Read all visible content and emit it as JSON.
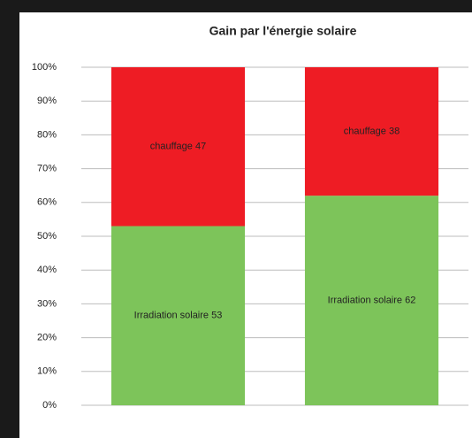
{
  "chart_data": {
    "type": "stacked_bar",
    "title": "Gain par l'énergie solaire",
    "categories": [
      null,
      null
    ],
    "series": [
      {
        "color": "#7dc45a",
        "values": [
          53,
          62
        ],
        "value_labels": [
          "Irradiation solaire 53",
          "Irradiation solaire 62"
        ]
      },
      {
        "color": "#ee1c24",
        "values": [
          47,
          38
        ],
        "value_labels": [
          "chauffage 47",
          "chauffage 38"
        ]
      }
    ],
    "ylim": [
      0,
      100
    ],
    "yticks": [
      {
        "value": 0,
        "label": "0%"
      },
      {
        "value": 10,
        "label": "10%"
      },
      {
        "value": 20,
        "label": "20%"
      },
      {
        "value": 30,
        "label": "30%"
      },
      {
        "value": 40,
        "label": "40%"
      },
      {
        "value": 50,
        "label": "50%"
      },
      {
        "value": 60,
        "label": "60%"
      },
      {
        "value": 70,
        "label": "70%"
      },
      {
        "value": 80,
        "label": "80%"
      },
      {
        "value": 90,
        "label": "90%"
      },
      {
        "value": 100,
        "label": "100%"
      }
    ],
    "grid": true
  }
}
